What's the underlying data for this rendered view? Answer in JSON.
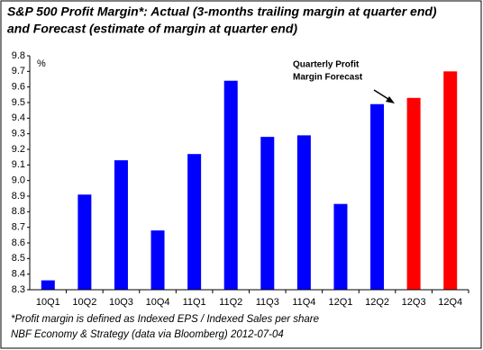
{
  "chart_data": {
    "type": "bar",
    "title": [
      "S&P 500 Profit Margin*: Actual (3-months trailing margin at quarter end)",
      "and Forecast (estimate of margin at quarter end)"
    ],
    "y_unit_label": "%",
    "categories": [
      "10Q1",
      "10Q2",
      "10Q3",
      "10Q4",
      "11Q1",
      "11Q2",
      "11Q3",
      "11Q4",
      "12Q1",
      "12Q2",
      "12Q3",
      "12Q4"
    ],
    "values": [
      8.36,
      8.91,
      9.13,
      8.68,
      9.17,
      9.64,
      9.28,
      9.29,
      8.85,
      9.49,
      9.53,
      9.7
    ],
    "colors": [
      "#0000ff",
      "#0000ff",
      "#0000ff",
      "#0000ff",
      "#0000ff",
      "#0000ff",
      "#0000ff",
      "#0000ff",
      "#0000ff",
      "#0000ff",
      "#ff0000",
      "#ff0000"
    ],
    "ylim": [
      8.3,
      9.8
    ],
    "yticks": [
      8.3,
      8.4,
      8.5,
      8.6,
      8.7,
      8.8,
      8.9,
      {
        "value": 9,
        "label": "9.0"
      },
      9.1,
      9.2,
      9.3,
      9.4,
      9.5,
      9.6,
      9.7,
      9.8
    ],
    "grid": false,
    "annotation": [
      "Quarterly Profit",
      "Margin Forecast"
    ],
    "notes": [
      "*Profit margin is defined as Indexed EPS / Indexed Sales per share",
      "NBF Economy & Strategy (data via Bloomberg) 2012-07-04"
    ]
  }
}
